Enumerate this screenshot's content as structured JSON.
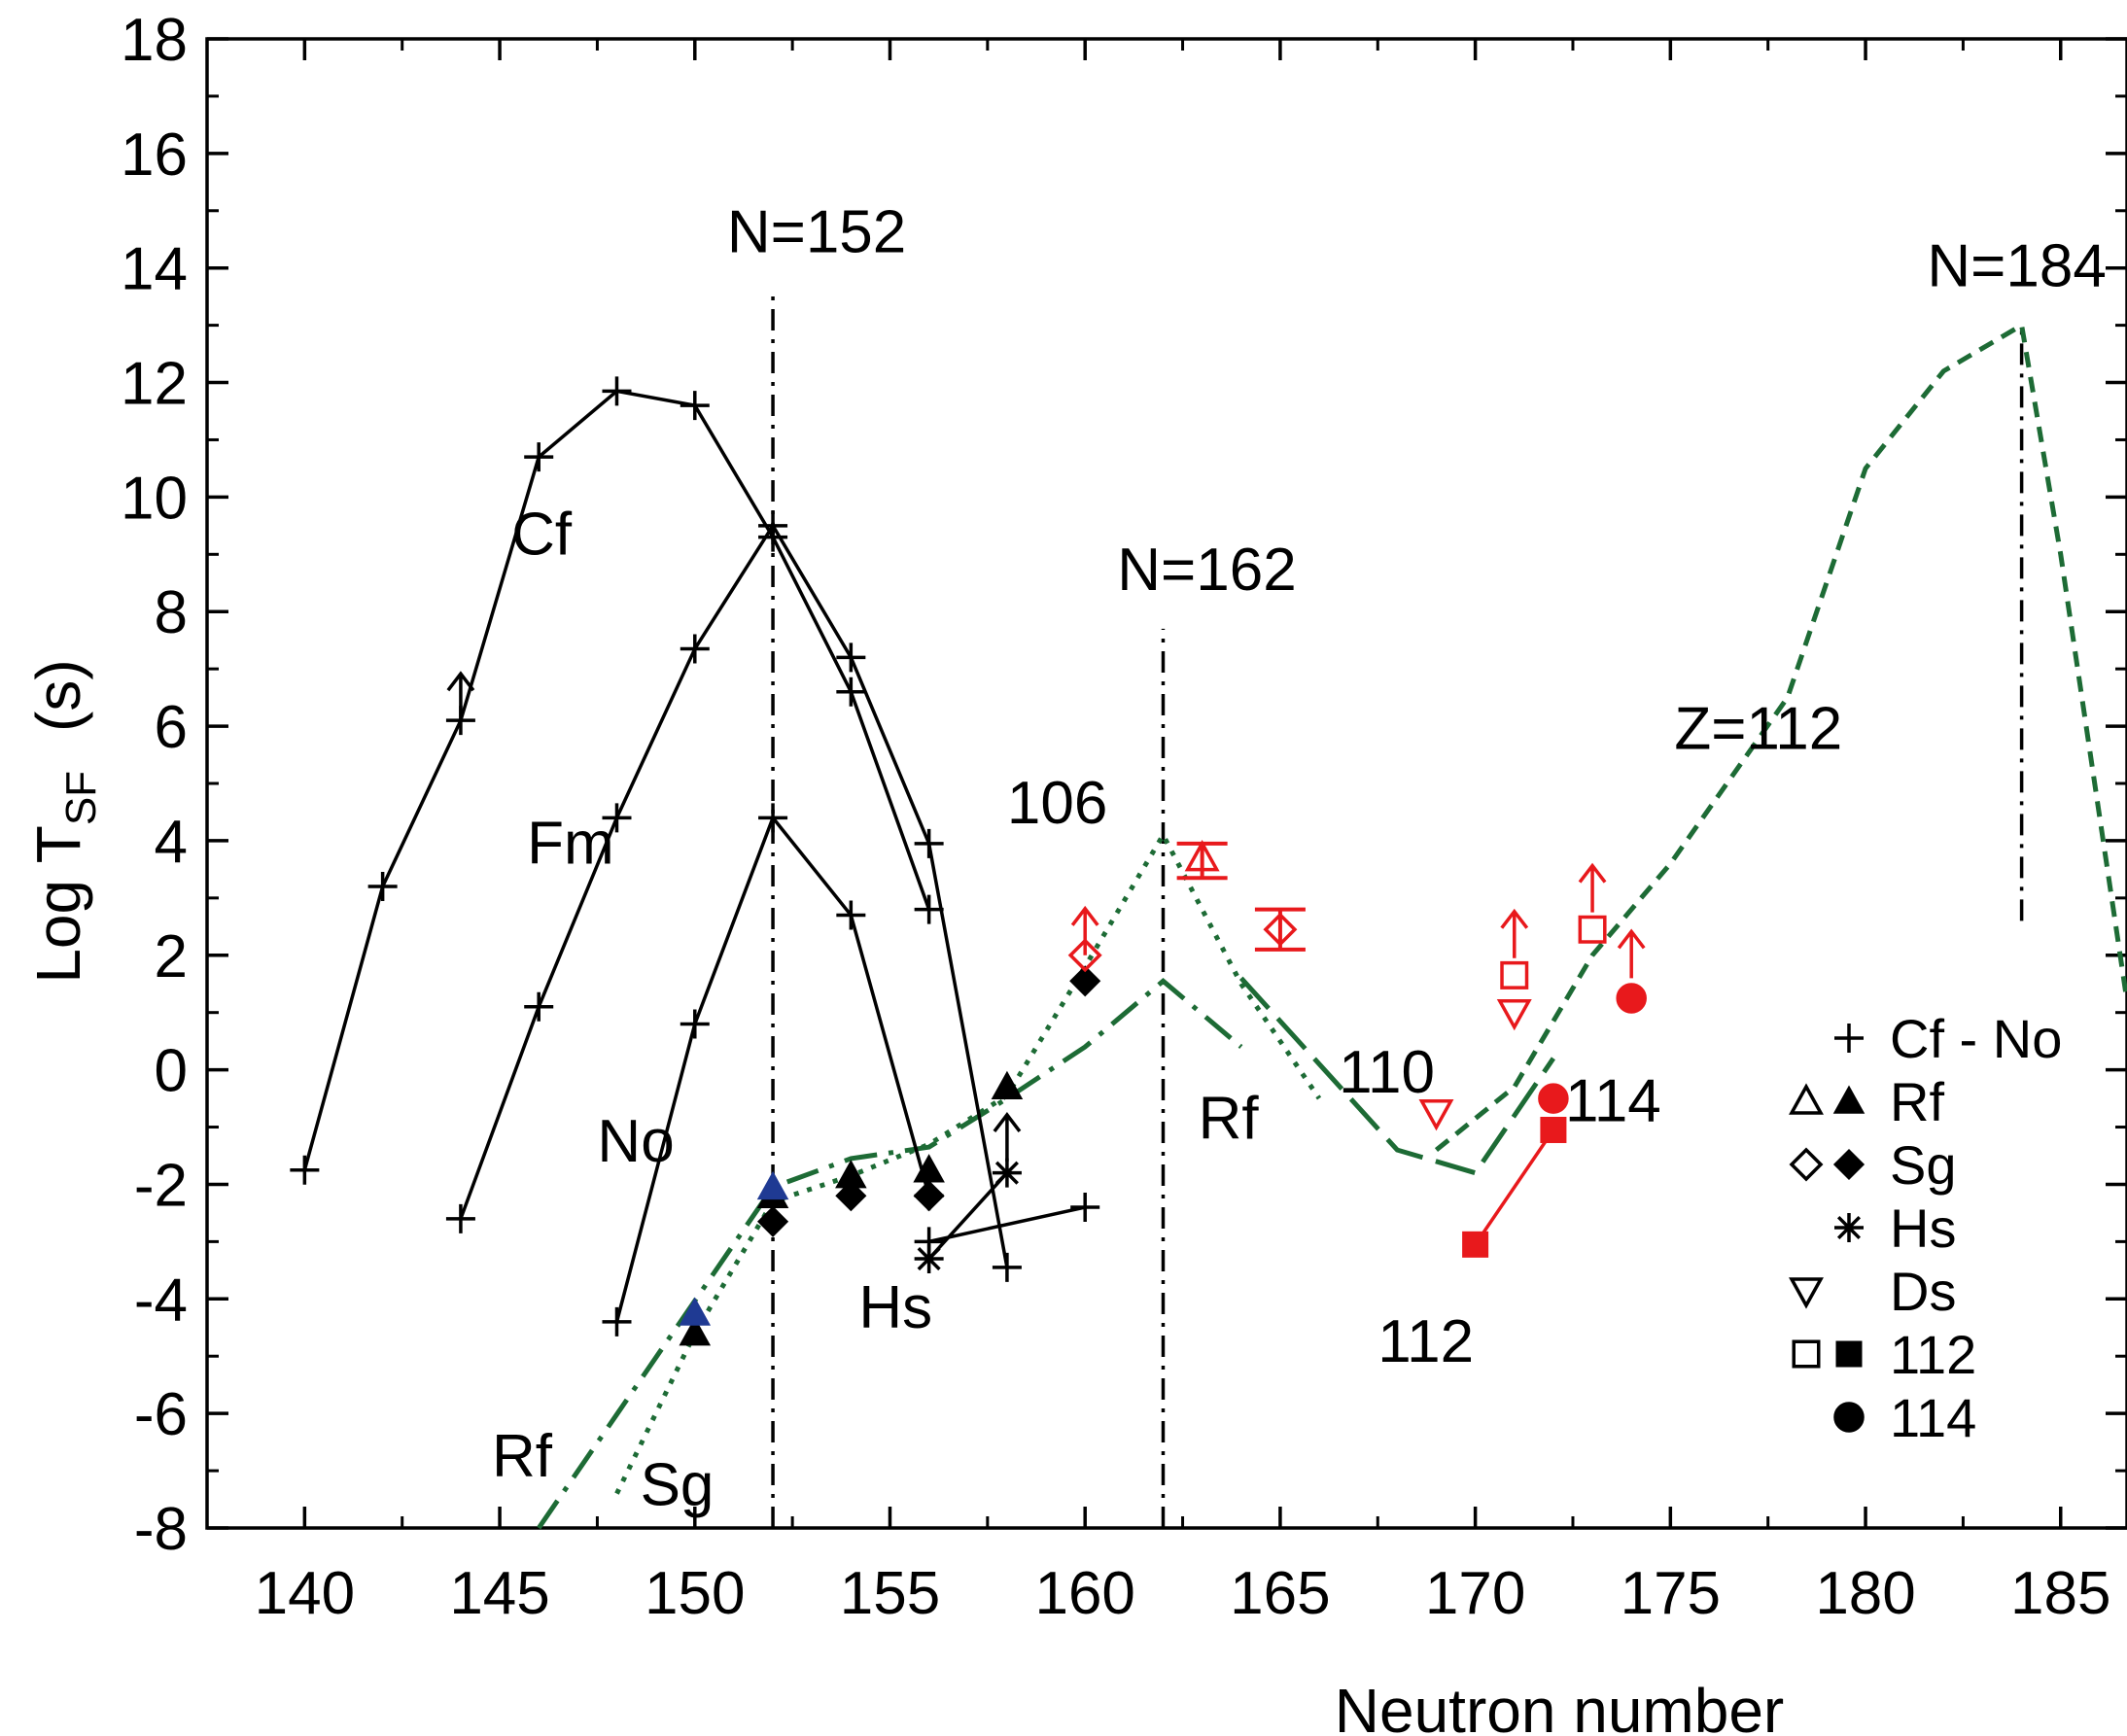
{
  "chart_data": {
    "type": "scatter",
    "title": "",
    "xlabel": "Neutron number",
    "ylabel_main": "Log T",
    "ylabel_sub": "SF",
    "ylabel_unit": "(s)",
    "xlim": [
      137.5,
      186.7
    ],
    "ylim": [
      -8,
      18
    ],
    "x_ticks": [
      {
        "value": 140,
        "label": "140"
      },
      {
        "value": 145,
        "label": "145"
      },
      {
        "value": 150,
        "label": "150"
      },
      {
        "value": 155,
        "label": "155"
      },
      {
        "value": 160,
        "label": "160"
      },
      {
        "value": 165,
        "label": "165"
      },
      {
        "value": 170,
        "label": "170"
      },
      {
        "value": 175,
        "label": "175"
      },
      {
        "value": 180,
        "label": "180"
      },
      {
        "value": 185,
        "label": "185"
      }
    ],
    "y_ticks": [
      {
        "value": -8,
        "label": "-8"
      },
      {
        "value": -6,
        "label": "-6"
      },
      {
        "value": -4,
        "label": "-4"
      },
      {
        "value": -2,
        "label": "-2"
      },
      {
        "value": 0,
        "label": "0"
      },
      {
        "value": 2,
        "label": "2"
      },
      {
        "value": 4,
        "label": "4"
      },
      {
        "value": 6,
        "label": "6"
      },
      {
        "value": 8,
        "label": "8"
      },
      {
        "value": 10,
        "label": "10"
      },
      {
        "value": 12,
        "label": "12"
      },
      {
        "value": 14,
        "label": "14"
      },
      {
        "value": 16,
        "label": "16"
      },
      {
        "value": 18,
        "label": "18"
      }
    ],
    "series": [
      {
        "name": "Cf",
        "kind": "experiment",
        "element": "Cf",
        "marker": "plus",
        "color": "#000000",
        "points": [
          {
            "x": 140,
            "y": -1.75
          },
          {
            "x": 142,
            "y": 3.2
          },
          {
            "x": 144,
            "y": 6.1
          },
          {
            "x": 146,
            "y": 10.7
          },
          {
            "x": 148,
            "y": 11.85
          },
          {
            "x": 150,
            "y": 11.6
          },
          {
            "x": 152,
            "y": 9.3
          },
          {
            "x": 154,
            "y": 6.6
          },
          {
            "x": 156,
            "y": 2.8
          }
        ]
      },
      {
        "name": "Fm",
        "kind": "experiment",
        "element": "Fm",
        "marker": "plus",
        "color": "#000000",
        "points": [
          {
            "x": 144,
            "y": -2.6
          },
          {
            "x": 146,
            "y": 1.1
          },
          {
            "x": 148,
            "y": 4.4
          },
          {
            "x": 150,
            "y": 7.35
          },
          {
            "x": 152,
            "y": 9.5
          },
          {
            "x": 154,
            "y": 7.2
          },
          {
            "x": 156,
            "y": 3.95
          },
          {
            "x": 158,
            "y": -3.45
          }
        ]
      },
      {
        "name": "No",
        "kind": "experiment",
        "element": "No",
        "marker": "plus",
        "color": "#000000",
        "points": [
          {
            "x": 148,
            "y": -4.4
          },
          {
            "x": 150,
            "y": 0.8
          },
          {
            "x": 152,
            "y": 4.4
          },
          {
            "x": 154,
            "y": 2.7
          },
          {
            "x": 156,
            "y": -2.2
          }
        ]
      },
      {
        "name": "Hs",
        "kind": "experiment",
        "element": "Hs",
        "marker": "asterisk",
        "color": "#000000",
        "points": [
          {
            "x": 156,
            "y": -3.3
          },
          {
            "x": 158,
            "y": -1.8
          }
        ]
      },
      {
        "name": "Hs-plus",
        "kind": "experiment",
        "element": "Hs",
        "marker": "plus",
        "color": "#000000",
        "points": [
          {
            "x": 156,
            "y": -3.0
          },
          {
            "x": 160,
            "y": -2.4
          }
        ]
      },
      {
        "name": "Rf",
        "kind": "experiment",
        "element": "Rf",
        "marker": "triangle-filled",
        "color": "#000000",
        "points": [
          {
            "x": 150,
            "y": -4.6
          },
          {
            "x": 152,
            "y": -2.2
          },
          {
            "x": 154,
            "y": -1.85
          },
          {
            "x": 156,
            "y": -1.75
          },
          {
            "x": 158,
            "y": -0.3
          }
        ]
      },
      {
        "name": "Sg",
        "kind": "experiment",
        "element": "Sg",
        "marker": "diamond-filled",
        "color": "#000000",
        "points": [
          {
            "x": 152,
            "y": -2.65
          },
          {
            "x": 154,
            "y": -2.2
          },
          {
            "x": 156,
            "y": -2.2
          },
          {
            "x": 160,
            "y": 1.55
          }
        ]
      },
      {
        "name": "Rf-blue",
        "kind": "experiment",
        "element": "Rf",
        "marker": "triangle-filled",
        "color": "#1f3a93",
        "points": [
          {
            "x": 150,
            "y": -4.25
          },
          {
            "x": 152,
            "y": -2.05
          }
        ]
      },
      {
        "name": "Rf-red",
        "kind": "experiment",
        "element": "Rf",
        "marker": "triangle-open",
        "color": "#e8191c",
        "points": [
          {
            "x": 163,
            "y": 3.7
          }
        ]
      },
      {
        "name": "Sg-red",
        "kind": "experiment",
        "element": "Sg",
        "marker": "diamond-open",
        "color": "#e8191c",
        "points": [
          {
            "x": 165,
            "y": 2.45
          }
        ]
      },
      {
        "name": "Ds",
        "kind": "experiment",
        "element": "Ds",
        "marker": "triangle-down-open",
        "color": "#e8191c",
        "points": [
          {
            "x": 169,
            "y": -0.75
          },
          {
            "x": 171,
            "y": 1.0
          }
        ]
      },
      {
        "name": "112-open",
        "kind": "experiment",
        "element": "112",
        "marker": "square-open",
        "color": "#e8191c",
        "points": [
          {
            "x": 171,
            "y": 1.65
          },
          {
            "x": 173,
            "y": 2.45
          }
        ]
      },
      {
        "name": "112-filled",
        "kind": "experiment",
        "element": "112",
        "marker": "square-filled",
        "color": "#e8191c",
        "points": [
          {
            "x": 170,
            "y": -3.05
          },
          {
            "x": 172,
            "y": -1.05
          }
        ]
      },
      {
        "name": "114",
        "kind": "experiment",
        "element": "114",
        "marker": "circle-filled",
        "color": "#e8191c",
        "points": [
          {
            "x": 172,
            "y": -0.5
          },
          {
            "x": 174,
            "y": 1.25
          }
        ]
      },
      {
        "name": "Sg-red-lowlimit",
        "kind": "experiment",
        "element": "Sg",
        "marker": "diamond-open",
        "color": "#e8191c",
        "points": [
          {
            "x": 160,
            "y": 2.0
          }
        ]
      },
      {
        "name": "Rf theory",
        "kind": "theory",
        "style": "dash-dot",
        "color": "#1d6b35",
        "points": [
          {
            "x": 146,
            "y": -8.0
          },
          {
            "x": 152,
            "y": -2.05
          },
          {
            "x": 154,
            "y": -1.55
          },
          {
            "x": 156,
            "y": -1.35
          },
          {
            "x": 158,
            "y": -0.5
          },
          {
            "x": 160,
            "y": 0.4
          },
          {
            "x": 162,
            "y": 1.55
          },
          {
            "x": 164,
            "y": 0.4
          }
        ]
      },
      {
        "name": "Sg theory",
        "kind": "theory",
        "style": "dotted",
        "color": "#1d6b35",
        "points": [
          {
            "x": 148,
            "y": -7.4
          },
          {
            "x": 150,
            "y": -4.6
          },
          {
            "x": 152,
            "y": -2.3
          },
          {
            "x": 154,
            "y": -1.85
          },
          {
            "x": 156,
            "y": -1.3
          },
          {
            "x": 158,
            "y": -0.45
          },
          {
            "x": 160,
            "y": 1.8
          },
          {
            "x": 162,
            "y": 4.1
          },
          {
            "x": 164,
            "y": 1.5
          },
          {
            "x": 166,
            "y": -0.5
          }
        ]
      },
      {
        "name": "110 theory",
        "kind": "theory",
        "style": "long-dash",
        "color": "#1d6b35",
        "points": [
          {
            "x": 164,
            "y": 1.6
          },
          {
            "x": 166,
            "y": 0.1
          },
          {
            "x": 168,
            "y": -1.4
          },
          {
            "x": 170,
            "y": -1.8
          },
          {
            "x": 172,
            "y": 0.2
          }
        ]
      },
      {
        "name": "Z=112 theory",
        "kind": "theory",
        "style": "short-dash",
        "color": "#1d6b35",
        "points": [
          {
            "x": 169,
            "y": -1.4
          },
          {
            "x": 171,
            "y": -0.3
          },
          {
            "x": 173,
            "y": 2.0
          },
          {
            "x": 175,
            "y": 3.6
          },
          {
            "x": 178,
            "y": 6.5
          },
          {
            "x": 180,
            "y": 10.5
          },
          {
            "x": 182,
            "y": 12.2
          },
          {
            "x": 184,
            "y": 13.0
          },
          {
            "x": 185,
            "y": 9.0
          },
          {
            "x": 186.7,
            "y": 1.2
          }
        ]
      }
    ],
    "lower_limit_arrows": [
      {
        "x": 144,
        "y": 6.1,
        "color": "#000000"
      },
      {
        "x": 158,
        "y": -1.6,
        "color": "#000000"
      },
      {
        "x": 160,
        "y": 2.0,
        "color": "#e8191c"
      },
      {
        "x": 171,
        "y": 1.95,
        "color": "#e8191c"
      },
      {
        "x": 173,
        "y": 2.75,
        "color": "#e8191c"
      },
      {
        "x": 174,
        "y": 1.6,
        "color": "#e8191c"
      }
    ],
    "error_bars": [
      {
        "x": 163,
        "y_low": 3.35,
        "y_high": 3.95,
        "color": "#e8191c"
      },
      {
        "x": 165,
        "y_low": 2.1,
        "y_high": 2.8,
        "color": "#e8191c"
      }
    ],
    "vertical_reference_lines": [
      {
        "x": 152,
        "y_from": -8,
        "y_to": 13.6,
        "label": "N=152"
      },
      {
        "x": 162,
        "y_from": -8,
        "y_to": 7.7,
        "label": "N=162"
      },
      {
        "x": 184,
        "y_from": 2.6,
        "y_to": 13.0,
        "label": "N=184"
      }
    ],
    "annotations": [
      {
        "text": "Cf",
        "x": 145.3,
        "y": 9.0
      },
      {
        "text": "Fm",
        "x": 145.7,
        "y": 3.6
      },
      {
        "text": "No",
        "x": 147.5,
        "y": -1.6
      },
      {
        "text": "Rf",
        "x": 144.8,
        "y": -7.1
      },
      {
        "text": "Sg",
        "x": 148.6,
        "y": -7.6
      },
      {
        "text": "Hs",
        "x": 154.2,
        "y": -4.5
      },
      {
        "text": "106",
        "x": 158.0,
        "y": 4.3
      },
      {
        "text": "Rf",
        "x": 162.9,
        "y": -1.2
      },
      {
        "text": "110",
        "x": 166.5,
        "y": -0.4
      },
      {
        "text": "114",
        "x": 172.3,
        "y": -0.9
      },
      {
        "text": "112",
        "x": 167.5,
        "y": -5.1
      },
      {
        "text": "Z=112",
        "x": 175.1,
        "y": 5.6
      }
    ],
    "legend": {
      "position": "lower-right",
      "entries": [
        {
          "symbols": [
            "plus"
          ],
          "label": "Cf - No"
        },
        {
          "symbols": [
            "triangle-open",
            "triangle-filled"
          ],
          "label": "Rf"
        },
        {
          "symbols": [
            "diamond-open",
            "diamond-filled"
          ],
          "label": "Sg"
        },
        {
          "symbols": [
            "asterisk"
          ],
          "label": "Hs"
        },
        {
          "symbols": [
            "triangle-down-open"
          ],
          "label": "Ds"
        },
        {
          "symbols": [
            "square-open",
            "square-filled"
          ],
          "label": "112"
        },
        {
          "symbols": [
            "circle-filled"
          ],
          "label": "114"
        }
      ]
    }
  }
}
